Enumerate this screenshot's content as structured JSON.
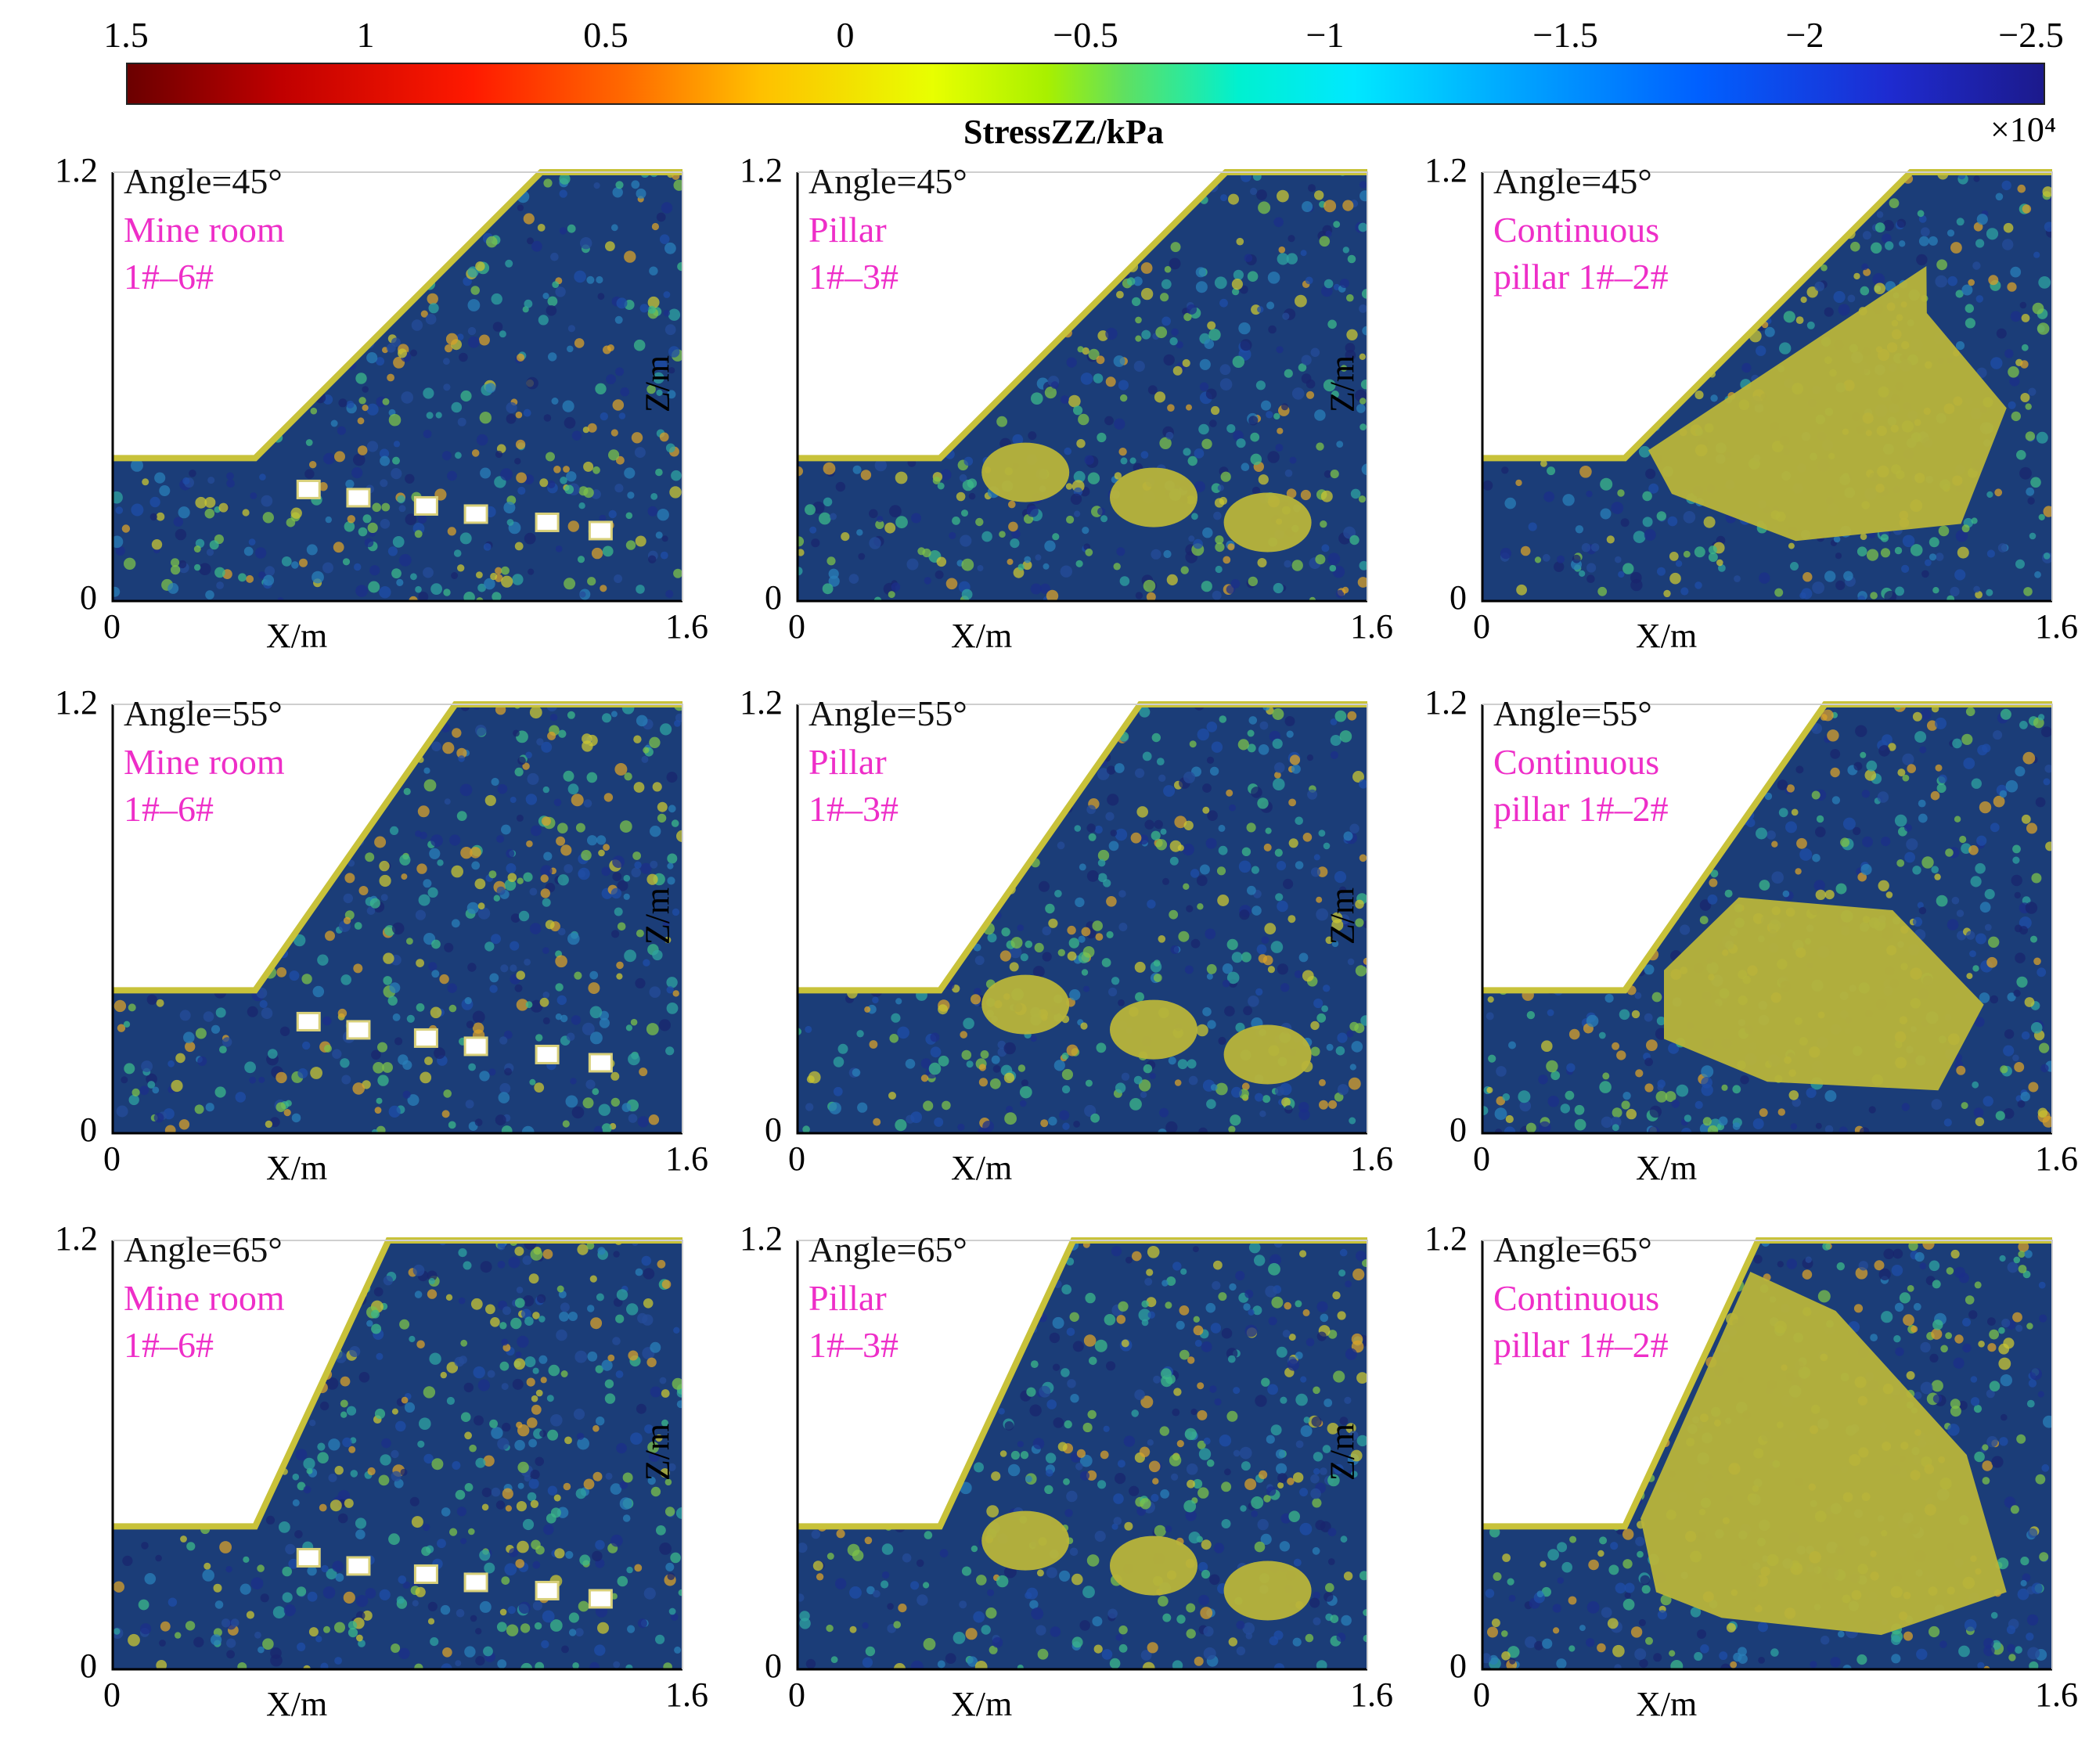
{
  "colorbar": {
    "ticks": [
      "1.5",
      "1",
      "0.5",
      "0",
      "−0.5",
      "−1",
      "−1.5",
      "−2",
      "−2.5"
    ],
    "label": "StressZZ/kPa",
    "exponent_label": "×10⁴",
    "colors": [
      "#6b0000",
      "#ff1a00",
      "#ffc000",
      "#e8ff00",
      "#00e8ff",
      "#0060ff",
      "#1c1a8c"
    ]
  },
  "axes": {
    "xlabel": "X/m",
    "ylabel": "Z/m",
    "x_min": "0",
    "x_max": "1.6",
    "y_min": "0",
    "y_max": "1.2"
  },
  "panels": [
    {
      "angle": "Angle=45°",
      "line1": "Mine room",
      "line2": "1#–6#",
      "type": "rooms"
    },
    {
      "angle": "Angle=45°",
      "line1": "Pillar",
      "line2": "1#–3#",
      "type": "pillars"
    },
    {
      "angle": "Angle=45°",
      "line1": "Continuous",
      "line2": "pillar 1#–2#",
      "type": "continuous"
    },
    {
      "angle": "Angle=55°",
      "line1": "Mine room",
      "line2": "1#–6#",
      "type": "rooms"
    },
    {
      "angle": "Angle=55°",
      "line1": "Pillar",
      "line2": "1#–3#",
      "type": "pillars"
    },
    {
      "angle": "Angle=55°",
      "line1": "Continuous",
      "line2": "pillar 1#–2#",
      "type": "continuous"
    },
    {
      "angle": "Angle=65°",
      "line1": "Mine room",
      "line2": "1#–6#",
      "type": "rooms"
    },
    {
      "angle": "Angle=65°",
      "line1": "Pillar",
      "line2": "1#–3#",
      "type": "pillars"
    },
    {
      "angle": "Angle=65°",
      "line1": "Continuous",
      "line2": "pillar 1#–2#",
      "type": "continuous"
    }
  ],
  "colors": {
    "background_field": "#1b3d78",
    "zone_fill": "#b8b43a",
    "annotation_magenta": "#ee2ec8"
  }
}
